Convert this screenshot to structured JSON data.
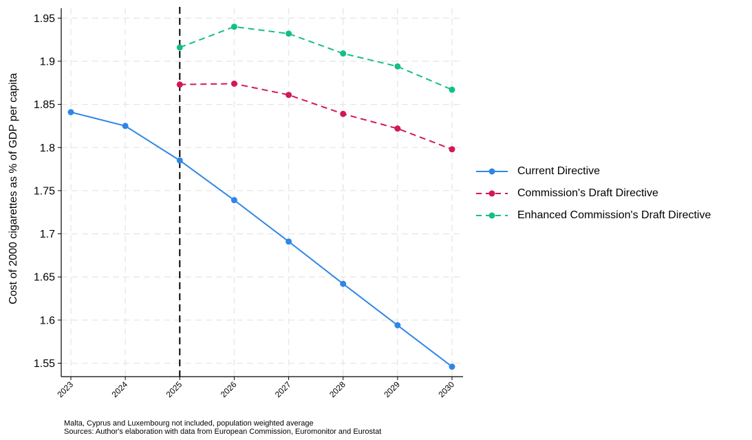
{
  "chart_data": {
    "type": "line",
    "title": "",
    "xlabel": "",
    "ylabel": "Cost of 2000 cigarettes as % of GDP per capita",
    "x": [
      "2023",
      "2024",
      "2025",
      "2026",
      "2027",
      "2028",
      "2029",
      "2030"
    ],
    "ylim": [
      1.535,
      1.962
    ],
    "yticks": [
      "1.55",
      "1.6",
      "1.65",
      "1.7",
      "1.75",
      "1.8",
      "1.85",
      "1.9",
      "1.95"
    ],
    "grid": true,
    "reference_line": {
      "x": "2025",
      "style": "dashed",
      "color": "#000000"
    },
    "legend_position": "right",
    "series": [
      {
        "name": "Current Directive",
        "color": "#2e86e6",
        "dashed": false,
        "values": [
          1.841,
          1.825,
          1.785,
          1.739,
          1.691,
          1.642,
          1.594,
          1.546
        ]
      },
      {
        "name": "Commission's Draft Directive",
        "color": "#d3175a",
        "dashed": true,
        "values": [
          null,
          null,
          1.873,
          1.874,
          1.861,
          1.839,
          1.822,
          1.798
        ]
      },
      {
        "name": "Enhanced Commission's Draft Directive",
        "color": "#13bf83",
        "dashed": true,
        "values": [
          null,
          null,
          1.916,
          1.94,
          1.932,
          1.909,
          1.894,
          1.867
        ]
      }
    ]
  },
  "notes": {
    "line1": "Malta, Cyprus and Luxembourg not included, population weighted average",
    "line2": "Sources: Author's elaboration with data from European Commission, Euromonitor and Eurostat"
  }
}
